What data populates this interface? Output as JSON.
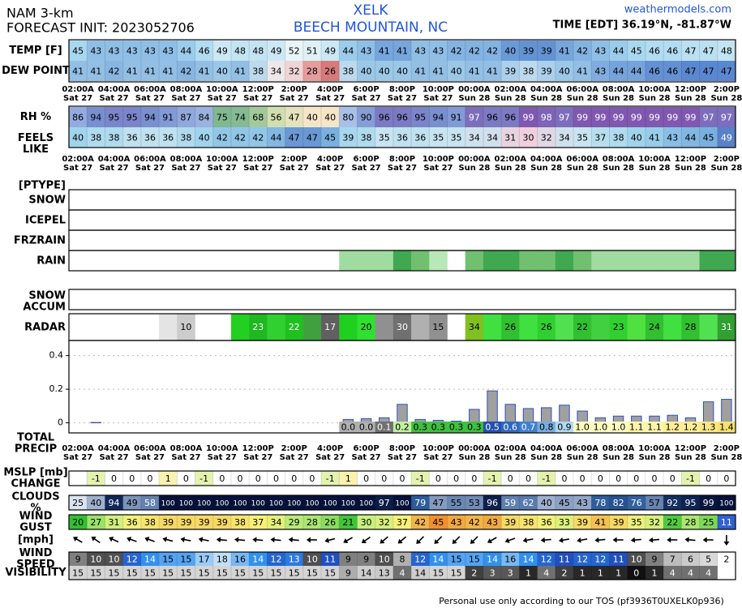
{
  "header": {
    "model": "NAM 3-km",
    "init": "FORECAST INIT: 2023052706",
    "station": "XELK",
    "location": "BEECH MOUNTAIN, NC",
    "site": "weathermodels.com",
    "coords": "TIME [EDT] 36.19°N, -81.87°W"
  },
  "time_axis": {
    "times": [
      "02:00A",
      "04:00A",
      "06:00A",
      "08:00A",
      "10:00A",
      "12:00P",
      "2:00P",
      "4:00P",
      "6:00P",
      "8:00P",
      "10:00P",
      "00:00A",
      "02:00A",
      "04:00A",
      "06:00A",
      "08:00A",
      "10:00A",
      "12:00P",
      "2:00P"
    ],
    "days": [
      "Sat 27",
      "Sat 27",
      "Sat 27",
      "Sat 27",
      "Sat 27",
      "Sat 27",
      "Sat 27",
      "Sat 27",
      "Sat 27",
      "Sat 27",
      "Sat 27",
      "Sun 28",
      "Sun 28",
      "Sun 28",
      "Sun 28",
      "Sun 28",
      "Sun 28",
      "Sun 28",
      "Sun 28"
    ]
  },
  "rows": {
    "temp": {
      "label": [
        "TEMP [F]"
      ],
      "values": [
        45,
        43,
        43,
        43,
        43,
        43,
        44,
        46,
        49,
        48,
        48,
        49,
        52,
        51,
        49,
        44,
        43,
        41,
        41,
        43,
        43,
        42,
        42,
        42,
        40,
        39,
        39,
        41,
        42,
        43,
        44,
        45,
        46,
        46,
        47,
        47,
        48
      ],
      "color_scale": [
        [
          30,
          "#3050b0"
        ],
        [
          40,
          "#6a9ad8"
        ],
        [
          45,
          "#a8d8f0"
        ],
        [
          52,
          "#e8f4f8"
        ],
        [
          60,
          "#f0e0a0"
        ]
      ]
    },
    "dew": {
      "label": [
        "DEW POINT"
      ],
      "values": [
        41,
        41,
        42,
        41,
        41,
        41,
        42,
        41,
        40,
        41,
        38,
        34,
        32,
        28,
        26,
        38,
        40,
        40,
        40,
        41,
        41,
        40,
        41,
        41,
        39,
        38,
        39,
        40,
        41,
        43,
        44,
        44,
        46,
        46,
        47,
        47,
        47
      ],
      "color_scale": [
        [
          25,
          "#d06868"
        ],
        [
          30,
          "#f0c0c0"
        ],
        [
          35,
          "#eef2f6"
        ],
        [
          40,
          "#9cc8e8"
        ],
        [
          47,
          "#5a88d0"
        ]
      ]
    },
    "rh": {
      "label": [
        "RH %"
      ],
      "values": [
        86,
        94,
        95,
        95,
        94,
        91,
        87,
        84,
        75,
        74,
        68,
        56,
        47,
        40,
        40,
        80,
        90,
        96,
        96,
        95,
        94,
        91,
        97,
        96,
        96,
        99,
        98,
        97,
        99,
        99,
        99,
        99,
        99,
        99,
        99,
        97,
        97
      ],
      "color_scale": [
        [
          40,
          "#f5e6c8"
        ],
        [
          60,
          "#c8dca8"
        ],
        [
          75,
          "#80b890"
        ],
        [
          80,
          "#a8c0e8"
        ],
        [
          94,
          "#7890d0"
        ],
        [
          99,
          "#8058b0"
        ]
      ]
    },
    "feels": {
      "label": [
        "FEELS",
        "LIKE"
      ],
      "values": [
        40,
        38,
        38,
        36,
        36,
        36,
        38,
        40,
        42,
        42,
        42,
        44,
        47,
        47,
        45,
        39,
        38,
        35,
        36,
        36,
        35,
        35,
        34,
        34,
        31,
        30,
        32,
        34,
        35,
        37,
        38,
        40,
        41,
        43,
        44,
        45,
        49
      ],
      "color_scale": [
        [
          30,
          "#f0d0dc"
        ],
        [
          35,
          "#c8e4f0"
        ],
        [
          40,
          "#a0d4ec"
        ],
        [
          45,
          "#7ab0e0"
        ],
        [
          49,
          "#5a80c8"
        ]
      ]
    },
    "mslp": {
      "label": [
        "MSLP [mb]",
        "CHANGE"
      ],
      "values": [
        null,
        -1,
        0,
        0,
        0,
        1,
        0,
        -1,
        0,
        0,
        0,
        0,
        0,
        0,
        -1,
        1,
        0,
        0,
        0,
        -1,
        0,
        0,
        0,
        -1,
        0,
        0,
        -1,
        0,
        0,
        0,
        0,
        0,
        0,
        0,
        -1,
        0,
        0
      ],
      "color_scale": [
        [
          -1,
          "#e4f2b0"
        ],
        [
          0,
          "#ffffff"
        ],
        [
          1,
          "#fbf2b0"
        ]
      ]
    },
    "clouds": {
      "label": [
        "CLOUDS",
        "%"
      ],
      "values": [
        25,
        40,
        94,
        49,
        58,
        100,
        100,
        100,
        100,
        100,
        100,
        100,
        100,
        100,
        100,
        100,
        100,
        97,
        100,
        79,
        47,
        55,
        53,
        96,
        59,
        62,
        40,
        45,
        43,
        78,
        82,
        76,
        57,
        92,
        95,
        99,
        100
      ],
      "color_scale": [
        [
          20,
          "#eef3fa"
        ],
        [
          50,
          "#7890b8"
        ],
        [
          80,
          "#2a5a9a"
        ],
        [
          100,
          "#06123a"
        ]
      ]
    },
    "gust": {
      "label": [
        "WIND",
        "GUST"
      ],
      "values": [
        20,
        27,
        31,
        36,
        38,
        39,
        39,
        39,
        39,
        38,
        37,
        34,
        29,
        28,
        26,
        21,
        30,
        32,
        37,
        42,
        45,
        43,
        42,
        43,
        39,
        38,
        36,
        33,
        39,
        41,
        39,
        35,
        32,
        22,
        28,
        25,
        11
      ],
      "color_scale": [
        [
          11,
          "#3060d0"
        ],
        [
          20,
          "#30c030"
        ],
        [
          30,
          "#c8f080"
        ],
        [
          37,
          "#f8f078"
        ],
        [
          45,
          "#f09030"
        ]
      ]
    },
    "speed": {
      "label": [
        "WIND",
        "SPEED"
      ],
      "values": [
        9,
        10,
        10,
        12,
        14,
        15,
        15,
        17,
        18,
        16,
        14,
        12,
        13,
        10,
        11,
        9,
        9,
        10,
        8,
        12,
        14,
        15,
        15,
        14,
        16,
        14,
        12,
        11,
        12,
        12,
        11,
        10,
        9,
        7,
        6,
        5,
        2
      ],
      "color_scale": [
        [
          2,
          "#ffffff"
        ],
        [
          8,
          "#b0b0b0"
        ],
        [
          10,
          "#505050"
        ],
        [
          11,
          "#2050c0"
        ],
        [
          14,
          "#3090f0"
        ],
        [
          18,
          "#c0e0f8"
        ]
      ]
    },
    "vis": {
      "label": [
        "VISIBILITY"
      ],
      "values": [
        15,
        15,
        15,
        15,
        15,
        15,
        15,
        15,
        15,
        15,
        15,
        15,
        15,
        15,
        15,
        9,
        14,
        13,
        4,
        14,
        15,
        15,
        2,
        3,
        3,
        1,
        4,
        2,
        1,
        1,
        1,
        0,
        1,
        4,
        4,
        4,
        null
      ],
      "color_scale": [
        [
          0,
          "#101010"
        ],
        [
          4,
          "#707070"
        ],
        [
          10,
          "#b8b8b8"
        ],
        [
          15,
          "#d4d4d4"
        ]
      ]
    }
  },
  "wind_dir": {
    "label": [
      "[mph]"
    ],
    "values": [
      120,
      125,
      115,
      110,
      110,
      105,
      100,
      100,
      95,
      95,
      95,
      95,
      95,
      90,
      75,
      60,
      55,
      50,
      50,
      45,
      45,
      45,
      45,
      60,
      70,
      80,
      85,
      80,
      80,
      85,
      90,
      85,
      85,
      90,
      95,
      90,
      0
    ],
    "color": "#000000"
  },
  "ptype": {
    "label": "[PTYPE]",
    "rows": [
      {
        "label": "SNOW"
      },
      {
        "label": "ICEPEL"
      },
      {
        "label": "FRZRAIN"
      },
      {
        "label": "RAIN",
        "colors": [
          null,
          null,
          null,
          null,
          null,
          null,
          null,
          null,
          null,
          null,
          null,
          null,
          null,
          null,
          null,
          "#a0dca0",
          "#a0dca0",
          "#a0dca0",
          "#40a850",
          "#70c070",
          "#b8e8b8",
          null,
          "#70c070",
          "#40a850",
          "#40a850",
          "#70c070",
          "#70c070",
          "#40a850",
          "#70c070",
          "#a0dca0",
          "#a0dca0",
          "#a0dca0",
          "#a0dca0",
          "#a0dca0",
          "#a0dca0",
          "#40a850",
          "#40a850"
        ]
      }
    ]
  },
  "snow_accum": {
    "label": [
      "SNOW",
      "ACCUM"
    ]
  },
  "radar": {
    "label": "RADAR",
    "values": [
      null,
      null,
      null,
      null,
      null,
      null,
      10,
      null,
      null,
      null,
      23,
      null,
      22,
      null,
      17,
      null,
      20,
      null,
      30,
      null,
      15,
      null,
      34,
      null,
      26,
      null,
      26,
      null,
      22,
      null,
      23,
      null,
      24,
      null,
      28,
      null,
      31
    ],
    "colors": [
      null,
      null,
      null,
      null,
      null,
      "#e4e4e4",
      "#cccccc",
      null,
      null,
      "#22d022",
      "#20b820",
      "#30d030",
      "#20c020",
      "#40a040",
      "#606060",
      "#20d020",
      "#30e030",
      "#909090",
      "#707070",
      "#b0b0b0",
      "#909090",
      null,
      "#80c020",
      "#40e040",
      "#30c030",
      "#40e040",
      "#30d030",
      "#50e050",
      "#30c030",
      "#40d040",
      "#30d030",
      "#50e040",
      "#30c030",
      "#40e040",
      "#30c030",
      "#50e050",
      "#30a030"
    ]
  },
  "chart_data": {
    "type": "bar",
    "label": [
      "TOTAL",
      "PRECIP"
    ],
    "values": [
      0,
      0.002,
      0,
      0,
      0,
      0,
      0,
      0,
      0,
      0,
      0,
      0,
      0,
      0,
      0,
      0.02,
      0.025,
      0.03,
      0.11,
      0.02,
      0.015,
      0.01,
      0.08,
      0.19,
      0.11,
      0.085,
      0.09,
      0.105,
      0.07,
      0.03,
      0.04,
      0.04,
      0.04,
      0.045,
      0.03,
      0.125,
      0.14
    ],
    "color": "#a0a0a0",
    "edge_color": "#3050c0",
    "ylim": [
      -0.06,
      0.49
    ],
    "yticks": [
      0,
      0.2,
      0.4
    ],
    "grid": true,
    "totals": [
      null,
      null,
      null,
      null,
      null,
      null,
      null,
      null,
      null,
      null,
      null,
      null,
      null,
      null,
      null,
      0.0,
      0.0,
      0.1,
      0.2,
      0.3,
      0.3,
      0.3,
      0.3,
      0.5,
      0.6,
      0.7,
      0.8,
      0.9,
      1.0,
      1.0,
      1.0,
      1.1,
      1.1,
      1.2,
      1.2,
      1.3,
      1.4
    ],
    "total_labels": [
      null,
      null,
      null,
      null,
      null,
      null,
      null,
      null,
      null,
      null,
      null,
      null,
      null,
      null,
      null,
      "0.0",
      "0.0",
      "0.1",
      "0.2",
      "0.3",
      "0.3",
      "0.3",
      "0.3",
      "0.5",
      "0.6",
      "0.7",
      "0.8",
      "0.9",
      "1.0",
      "1.0",
      "1.0",
      "1.1",
      "1.1",
      "1.2",
      "1.2",
      "1.3",
      "1.4"
    ],
    "total_color_scale": [
      [
        0,
        "#b0b0b0"
      ],
      [
        0.1,
        "#707070"
      ],
      [
        0.2,
        "#c0f0a0"
      ],
      [
        0.3,
        "#40c040"
      ],
      [
        0.5,
        "#2050b0"
      ],
      [
        0.7,
        "#4080d0"
      ],
      [
        0.9,
        "#b0d8f0"
      ],
      [
        1.0,
        "#fffcc0"
      ],
      [
        1.4,
        "#f8e070"
      ]
    ]
  },
  "footer": "Personal use only according to our TOS (pf3936T0UXELK0p936)"
}
